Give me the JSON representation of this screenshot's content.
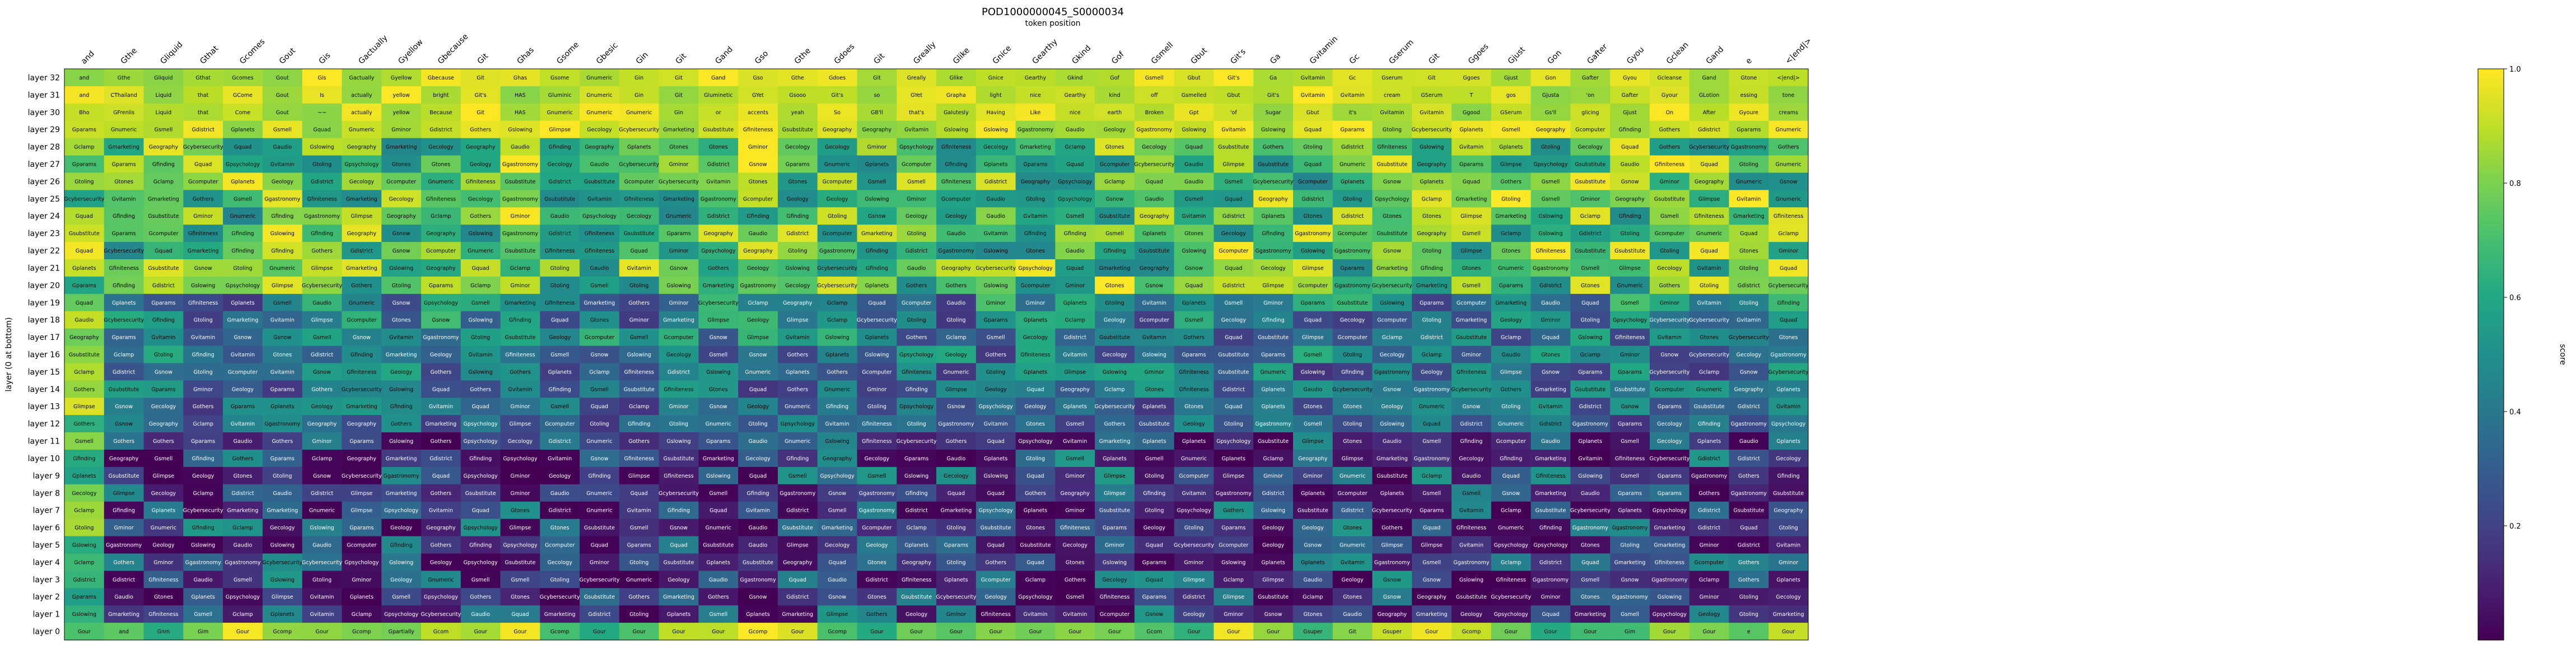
{
  "chart_data": {
    "type": "heatmap",
    "title": "POD1000000045_S0000034",
    "subtitle": "token position",
    "ylabel": "layer (0 at bottom)",
    "colorbar_label": "score",
    "colorbar_range": [
      0.0,
      1.0
    ],
    "colorbar_ticks": [
      "0.2",
      "0.4",
      "0.6",
      "0.8",
      "1.0"
    ],
    "colormap": "viridis",
    "layers": [
      "layer 32",
      "layer 31",
      "layer 30",
      "layer 29",
      "layer 28",
      "layer 27",
      "layer 26",
      "layer 25",
      "layer 24",
      "layer 23",
      "layer 22",
      "layer 21",
      "layer 20",
      "layer 19",
      "layer 18",
      "layer 17",
      "layer 16",
      "layer 15",
      "layer 14",
      "layer 13",
      "layer 12",
      "layer 11",
      "layer 10",
      "layer 9",
      "layer 8",
      "layer 7",
      "layer 6",
      "layer 5",
      "layer 4",
      "layer 3",
      "layer 2",
      "layer 1",
      "layer 0"
    ],
    "tokens": [
      "and",
      "Gthe",
      "Gliquid",
      "Gthat",
      "Gcomes",
      "Gout",
      "Gis",
      "Gactually",
      "Gyellow",
      "Gbecause",
      "Git",
      "Ghas",
      "Gsome",
      "Gbesic",
      "Gin",
      "Git",
      "Gand",
      "Gso",
      "Gthe",
      "Gdoes",
      "Git",
      "Greally",
      "Glike",
      "Gnice",
      "Gearthy",
      "Gkind",
      "Gof",
      "Gsmell",
      "Gbut",
      "Git's",
      "Ga",
      "Gvitamin",
      "Gc",
      "Gserum",
      "Git",
      "Ggoes",
      "Gjust",
      "Gon",
      "Gafter",
      "Gyou",
      "Gclean",
      "Gand",
      "e",
      "<|end|>"
    ],
    "top_row": [
      "and",
      "Gthe",
      "Gliquid",
      "Gthat",
      "Gcomes",
      "Gout",
      "Gis",
      "Gactually",
      "Gyellow",
      "Gbecause",
      "Git",
      "Ghas",
      "Gsome",
      "Gnumeric",
      "Gin",
      "Git",
      "Gand",
      "Gso",
      "Gthe",
      "Gdoes",
      "Git",
      "Greally",
      "Glike",
      "Gnice",
      "Gearthy",
      "Gkind",
      "Gof",
      "Gsmell",
      "Gbut",
      "Git's",
      "Ga",
      "Gvitamin",
      "Gc",
      "Gserum",
      "Git",
      "Ggoes",
      "Gjust",
      "Gon",
      "Gafter",
      "Gyou",
      "Gcleanse",
      "Gand",
      "Gtone",
      "<|end|>"
    ],
    "row_31": [
      "and",
      "CThailand",
      "Liquid",
      "that",
      "GCome",
      "Gout",
      "Is",
      "actually",
      "yellow",
      "bright",
      "Git's",
      "HAS",
      "Gluminic",
      "Gnumeric",
      "Gin",
      "Git",
      "Gluminetic",
      "GYet",
      "Gsooo",
      "Git's",
      "so",
      "GYet",
      "Grapha",
      "light",
      "nice",
      "Gearthy",
      "kind",
      "off",
      "Gsmelled",
      "Gbut",
      "Git's",
      "Gvitamin",
      "Gvitamin",
      "cream",
      "GSerum",
      "T",
      "gos",
      "Gjusta",
      "'on",
      "Gafter",
      "Gyour",
      "GLotion",
      "essing",
      "tone"
    ],
    "row_30": [
      "Bho",
      "GFrenlis",
      "Liquid",
      "that",
      "Come",
      "Gout",
      "~~",
      "actually",
      "yellow",
      "Because",
      "Git",
      "HAS",
      "Gnumeric",
      "Gnumeric",
      "Gnumeric",
      "Gin",
      "or",
      "accents",
      "yeah",
      "So",
      "GB'll",
      "that's",
      "Galutesly",
      "Having",
      "Like",
      "nice",
      "earth",
      "Broken",
      "Gpt",
      "'of",
      "Sugar",
      "Gbut",
      "it's",
      "Gvitamin",
      "Gvitamin",
      "Ggood",
      "GSerum",
      "Gs'll",
      "glicing",
      "Gjust",
      "On",
      "After",
      "Gyoure",
      "creams"
    ],
    "bottom_row": [
      "Gour",
      "and",
      "Gnm",
      "Gim",
      "Gour",
      "Gcomp",
      "Gour",
      "Gcomp",
      "Gpartially",
      "Gcom",
      "Gour",
      "Gour",
      "Gcomp",
      "Gour",
      "Gour",
      "Gour",
      "Gour",
      "Gcomp",
      "Gour",
      "Gcomp",
      "Gour",
      "Gour",
      "Gour",
      "Gour",
      "Gour",
      "Gour",
      "Gour",
      "Gcom",
      "Gour",
      "Gour",
      "Gour",
      "Gsuper",
      "Git",
      "Gsuper",
      "Gour",
      "Gcomp",
      "Gour",
      "Gour",
      "Gour",
      "Gim",
      "Gour",
      "Gour",
      "e",
      "Gour"
    ],
    "common_labels": [
      "Geology",
      "Geography",
      "Gcomputer",
      "Gmarketing",
      "Gecology",
      "Gsnow",
      "Gminor",
      "Gnumeric",
      "Gplanets",
      "Ggastronomy",
      "Gpsychology",
      "Gtones",
      "Gaudio",
      "Gfiniteness",
      "Gquad",
      "Gdistrict",
      "Gothers",
      "Gslowing",
      "Gparams",
      "Gvitamin",
      "Gsmell",
      "Glimpse",
      "Gfinding",
      "Gcybersecurity",
      "Gsubstitute",
      "Gclamp",
      "Gtoling"
    ],
    "scores_note": "per-cell scores 0..1 mapped with viridis; top rows near 1.0, bottom rows mixed"
  }
}
